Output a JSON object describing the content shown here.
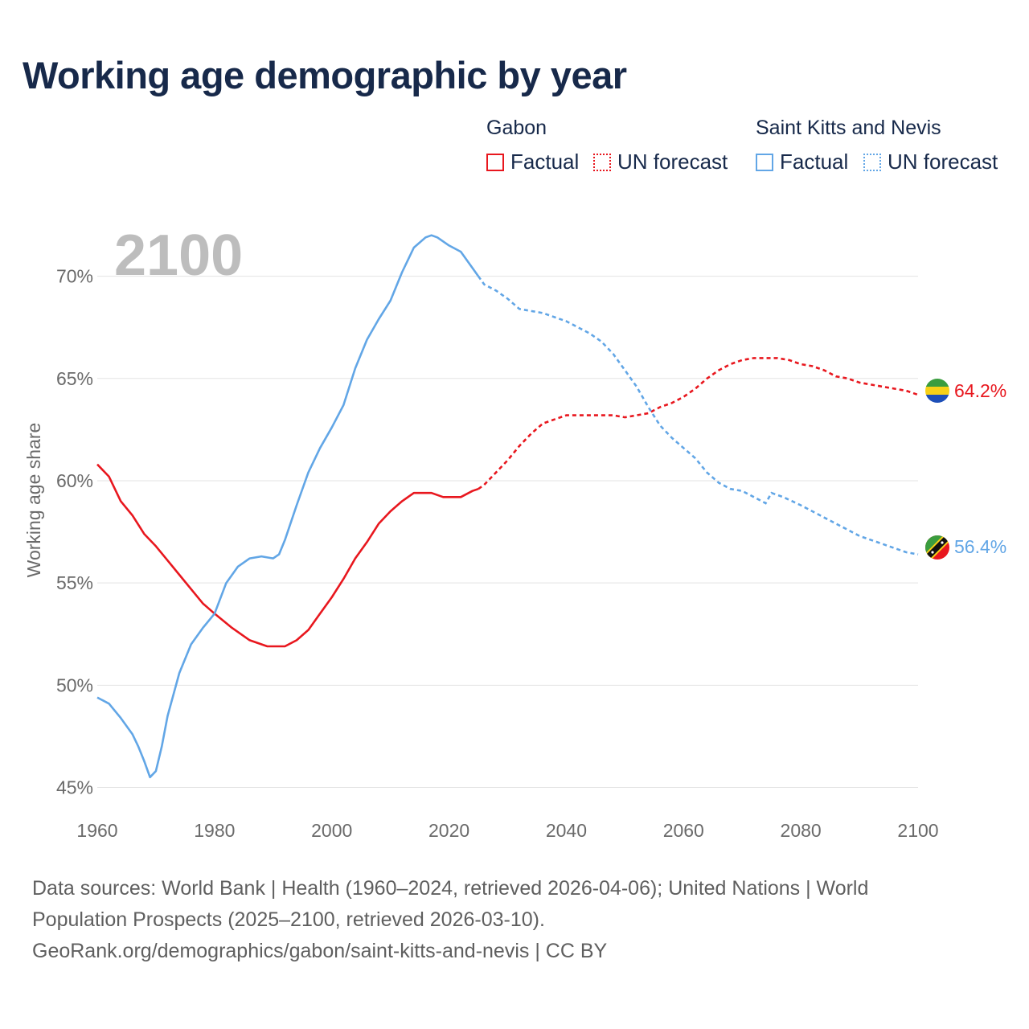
{
  "title": "Working age demographic by year",
  "legend": {
    "groups": [
      {
        "country": "Gabon",
        "factual_label": "Factual",
        "forecast_label": "UN forecast"
      },
      {
        "country": "Saint Kitts and Nevis",
        "factual_label": "Factual",
        "forecast_label": "UN forecast"
      }
    ]
  },
  "year_watermark": "2100",
  "colors": {
    "gabon": "#e8171e",
    "skn": "#62a6e6",
    "grid": "#e3e3e3",
    "axis_text": "#6a6a6a",
    "title": "#17294a",
    "watermark": "#bdbdbd"
  },
  "footer": {
    "line1": "Data sources: World Bank | Health (1960–2024, retrieved 2026-04-06); United Nations | World",
    "line2": "Population Prospects (2025–2100, retrieved 2026-03-10).",
    "line3": "GeoRank.org/demographics/gabon/saint-kitts-and-nevis | CC BY"
  },
  "chart_data": {
    "type": "line",
    "ylabel": "Working age share",
    "xlabel": "",
    "xlim": [
      1960,
      2100
    ],
    "ylim": [
      44,
      72.5
    ],
    "x_ticks": [
      1960,
      1980,
      2000,
      2020,
      2040,
      2060,
      2080,
      2100
    ],
    "y_ticks": [
      45,
      50,
      55,
      60,
      65,
      70
    ],
    "y_tick_labels": [
      "45%",
      "50%",
      "55%",
      "60%",
      "65%",
      "70%"
    ],
    "end_labels": {
      "gabon": "64.2%",
      "skn": "56.4%"
    },
    "series": [
      {
        "name": "Gabon",
        "key": "gabon",
        "forecast_start": 2025,
        "points": [
          [
            1960,
            60.8
          ],
          [
            1962,
            60.2
          ],
          [
            1964,
            59.0
          ],
          [
            1966,
            58.3
          ],
          [
            1968,
            57.4
          ],
          [
            1970,
            56.8
          ],
          [
            1972,
            56.1
          ],
          [
            1974,
            55.4
          ],
          [
            1976,
            54.7
          ],
          [
            1978,
            54.0
          ],
          [
            1980,
            53.5
          ],
          [
            1983,
            52.8
          ],
          [
            1986,
            52.2
          ],
          [
            1989,
            51.9
          ],
          [
            1992,
            51.9
          ],
          [
            1994,
            52.2
          ],
          [
            1996,
            52.7
          ],
          [
            1998,
            53.5
          ],
          [
            2000,
            54.3
          ],
          [
            2002,
            55.2
          ],
          [
            2004,
            56.2
          ],
          [
            2006,
            57.0
          ],
          [
            2008,
            57.9
          ],
          [
            2010,
            58.5
          ],
          [
            2012,
            59.0
          ],
          [
            2014,
            59.4
          ],
          [
            2017,
            59.4
          ],
          [
            2019,
            59.2
          ],
          [
            2022,
            59.2
          ],
          [
            2024,
            59.5
          ],
          [
            2025,
            59.6
          ],
          [
            2026,
            59.8
          ],
          [
            2028,
            60.4
          ],
          [
            2030,
            61.0
          ],
          [
            2032,
            61.7
          ],
          [
            2034,
            62.3
          ],
          [
            2036,
            62.8
          ],
          [
            2038,
            63.0
          ],
          [
            2040,
            63.2
          ],
          [
            2044,
            63.2
          ],
          [
            2048,
            63.2
          ],
          [
            2050,
            63.1
          ],
          [
            2052,
            63.2
          ],
          [
            2054,
            63.3
          ],
          [
            2056,
            63.6
          ],
          [
            2058,
            63.8
          ],
          [
            2060,
            64.1
          ],
          [
            2062,
            64.5
          ],
          [
            2064,
            65.0
          ],
          [
            2066,
            65.4
          ],
          [
            2068,
            65.7
          ],
          [
            2070,
            65.9
          ],
          [
            2072,
            66.0
          ],
          [
            2076,
            66.0
          ],
          [
            2078,
            65.9
          ],
          [
            2080,
            65.7
          ],
          [
            2082,
            65.6
          ],
          [
            2084,
            65.4
          ],
          [
            2086,
            65.1
          ],
          [
            2088,
            65.0
          ],
          [
            2090,
            64.8
          ],
          [
            2094,
            64.6
          ],
          [
            2098,
            64.4
          ],
          [
            2100,
            64.2
          ]
        ]
      },
      {
        "name": "Saint Kitts and Nevis",
        "key": "skn",
        "forecast_start": 2025,
        "points": [
          [
            1960,
            49.4
          ],
          [
            1962,
            49.1
          ],
          [
            1964,
            48.4
          ],
          [
            1966,
            47.6
          ],
          [
            1967,
            47.0
          ],
          [
            1968,
            46.3
          ],
          [
            1969,
            45.5
          ],
          [
            1970,
            45.8
          ],
          [
            1971,
            47.0
          ],
          [
            1972,
            48.5
          ],
          [
            1974,
            50.6
          ],
          [
            1976,
            52.0
          ],
          [
            1978,
            52.8
          ],
          [
            1980,
            53.5
          ],
          [
            1982,
            55.0
          ],
          [
            1984,
            55.8
          ],
          [
            1986,
            56.2
          ],
          [
            1988,
            56.3
          ],
          [
            1990,
            56.2
          ],
          [
            1991,
            56.4
          ],
          [
            1992,
            57.1
          ],
          [
            1994,
            58.8
          ],
          [
            1996,
            60.4
          ],
          [
            1998,
            61.6
          ],
          [
            2000,
            62.6
          ],
          [
            2002,
            63.7
          ],
          [
            2004,
            65.5
          ],
          [
            2006,
            66.9
          ],
          [
            2008,
            67.9
          ],
          [
            2010,
            68.8
          ],
          [
            2012,
            70.2
          ],
          [
            2014,
            71.4
          ],
          [
            2016,
            71.9
          ],
          [
            2017,
            72.0
          ],
          [
            2018,
            71.9
          ],
          [
            2020,
            71.5
          ],
          [
            2022,
            71.2
          ],
          [
            2024,
            70.4
          ],
          [
            2025,
            70.0
          ],
          [
            2026,
            69.6
          ],
          [
            2028,
            69.3
          ],
          [
            2030,
            68.9
          ],
          [
            2032,
            68.4
          ],
          [
            2036,
            68.2
          ],
          [
            2038,
            68.0
          ],
          [
            2040,
            67.8
          ],
          [
            2042,
            67.5
          ],
          [
            2044,
            67.2
          ],
          [
            2046,
            66.8
          ],
          [
            2048,
            66.2
          ],
          [
            2050,
            65.4
          ],
          [
            2052,
            64.6
          ],
          [
            2054,
            63.6
          ],
          [
            2056,
            62.7
          ],
          [
            2058,
            62.1
          ],
          [
            2060,
            61.6
          ],
          [
            2062,
            61.1
          ],
          [
            2064,
            60.4
          ],
          [
            2066,
            59.9
          ],
          [
            2068,
            59.6
          ],
          [
            2070,
            59.5
          ],
          [
            2072,
            59.2
          ],
          [
            2074,
            58.9
          ],
          [
            2075,
            59.4
          ],
          [
            2077,
            59.2
          ],
          [
            2080,
            58.8
          ],
          [
            2082,
            58.5
          ],
          [
            2084,
            58.2
          ],
          [
            2086,
            57.9
          ],
          [
            2088,
            57.6
          ],
          [
            2090,
            57.3
          ],
          [
            2094,
            56.9
          ],
          [
            2098,
            56.5
          ],
          [
            2100,
            56.4
          ]
        ]
      }
    ]
  }
}
